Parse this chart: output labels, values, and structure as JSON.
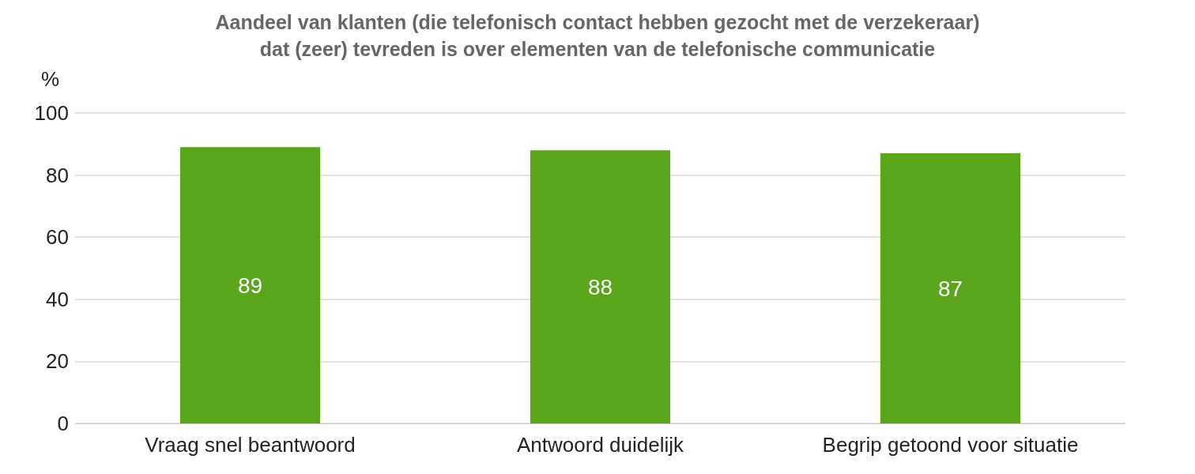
{
  "chart_data": {
    "type": "bar",
    "title": "Aandeel van klanten (die telefonisch contact hebben gezocht met de verzekeraar)\ndat (zeer) tevreden is over elementen van de telefonische communicatie",
    "ylabel": "%",
    "categories": [
      "Vraag snel beantwoord",
      "Antwoord duidelijk",
      "Begrip getoond voor situatie"
    ],
    "values": [
      89,
      88,
      87
    ],
    "color": "#5aa51a",
    "ylim": [
      0,
      100
    ],
    "yticks": [
      0,
      20,
      40,
      60,
      80,
      100
    ],
    "grid": "y",
    "data_labels": true
  }
}
